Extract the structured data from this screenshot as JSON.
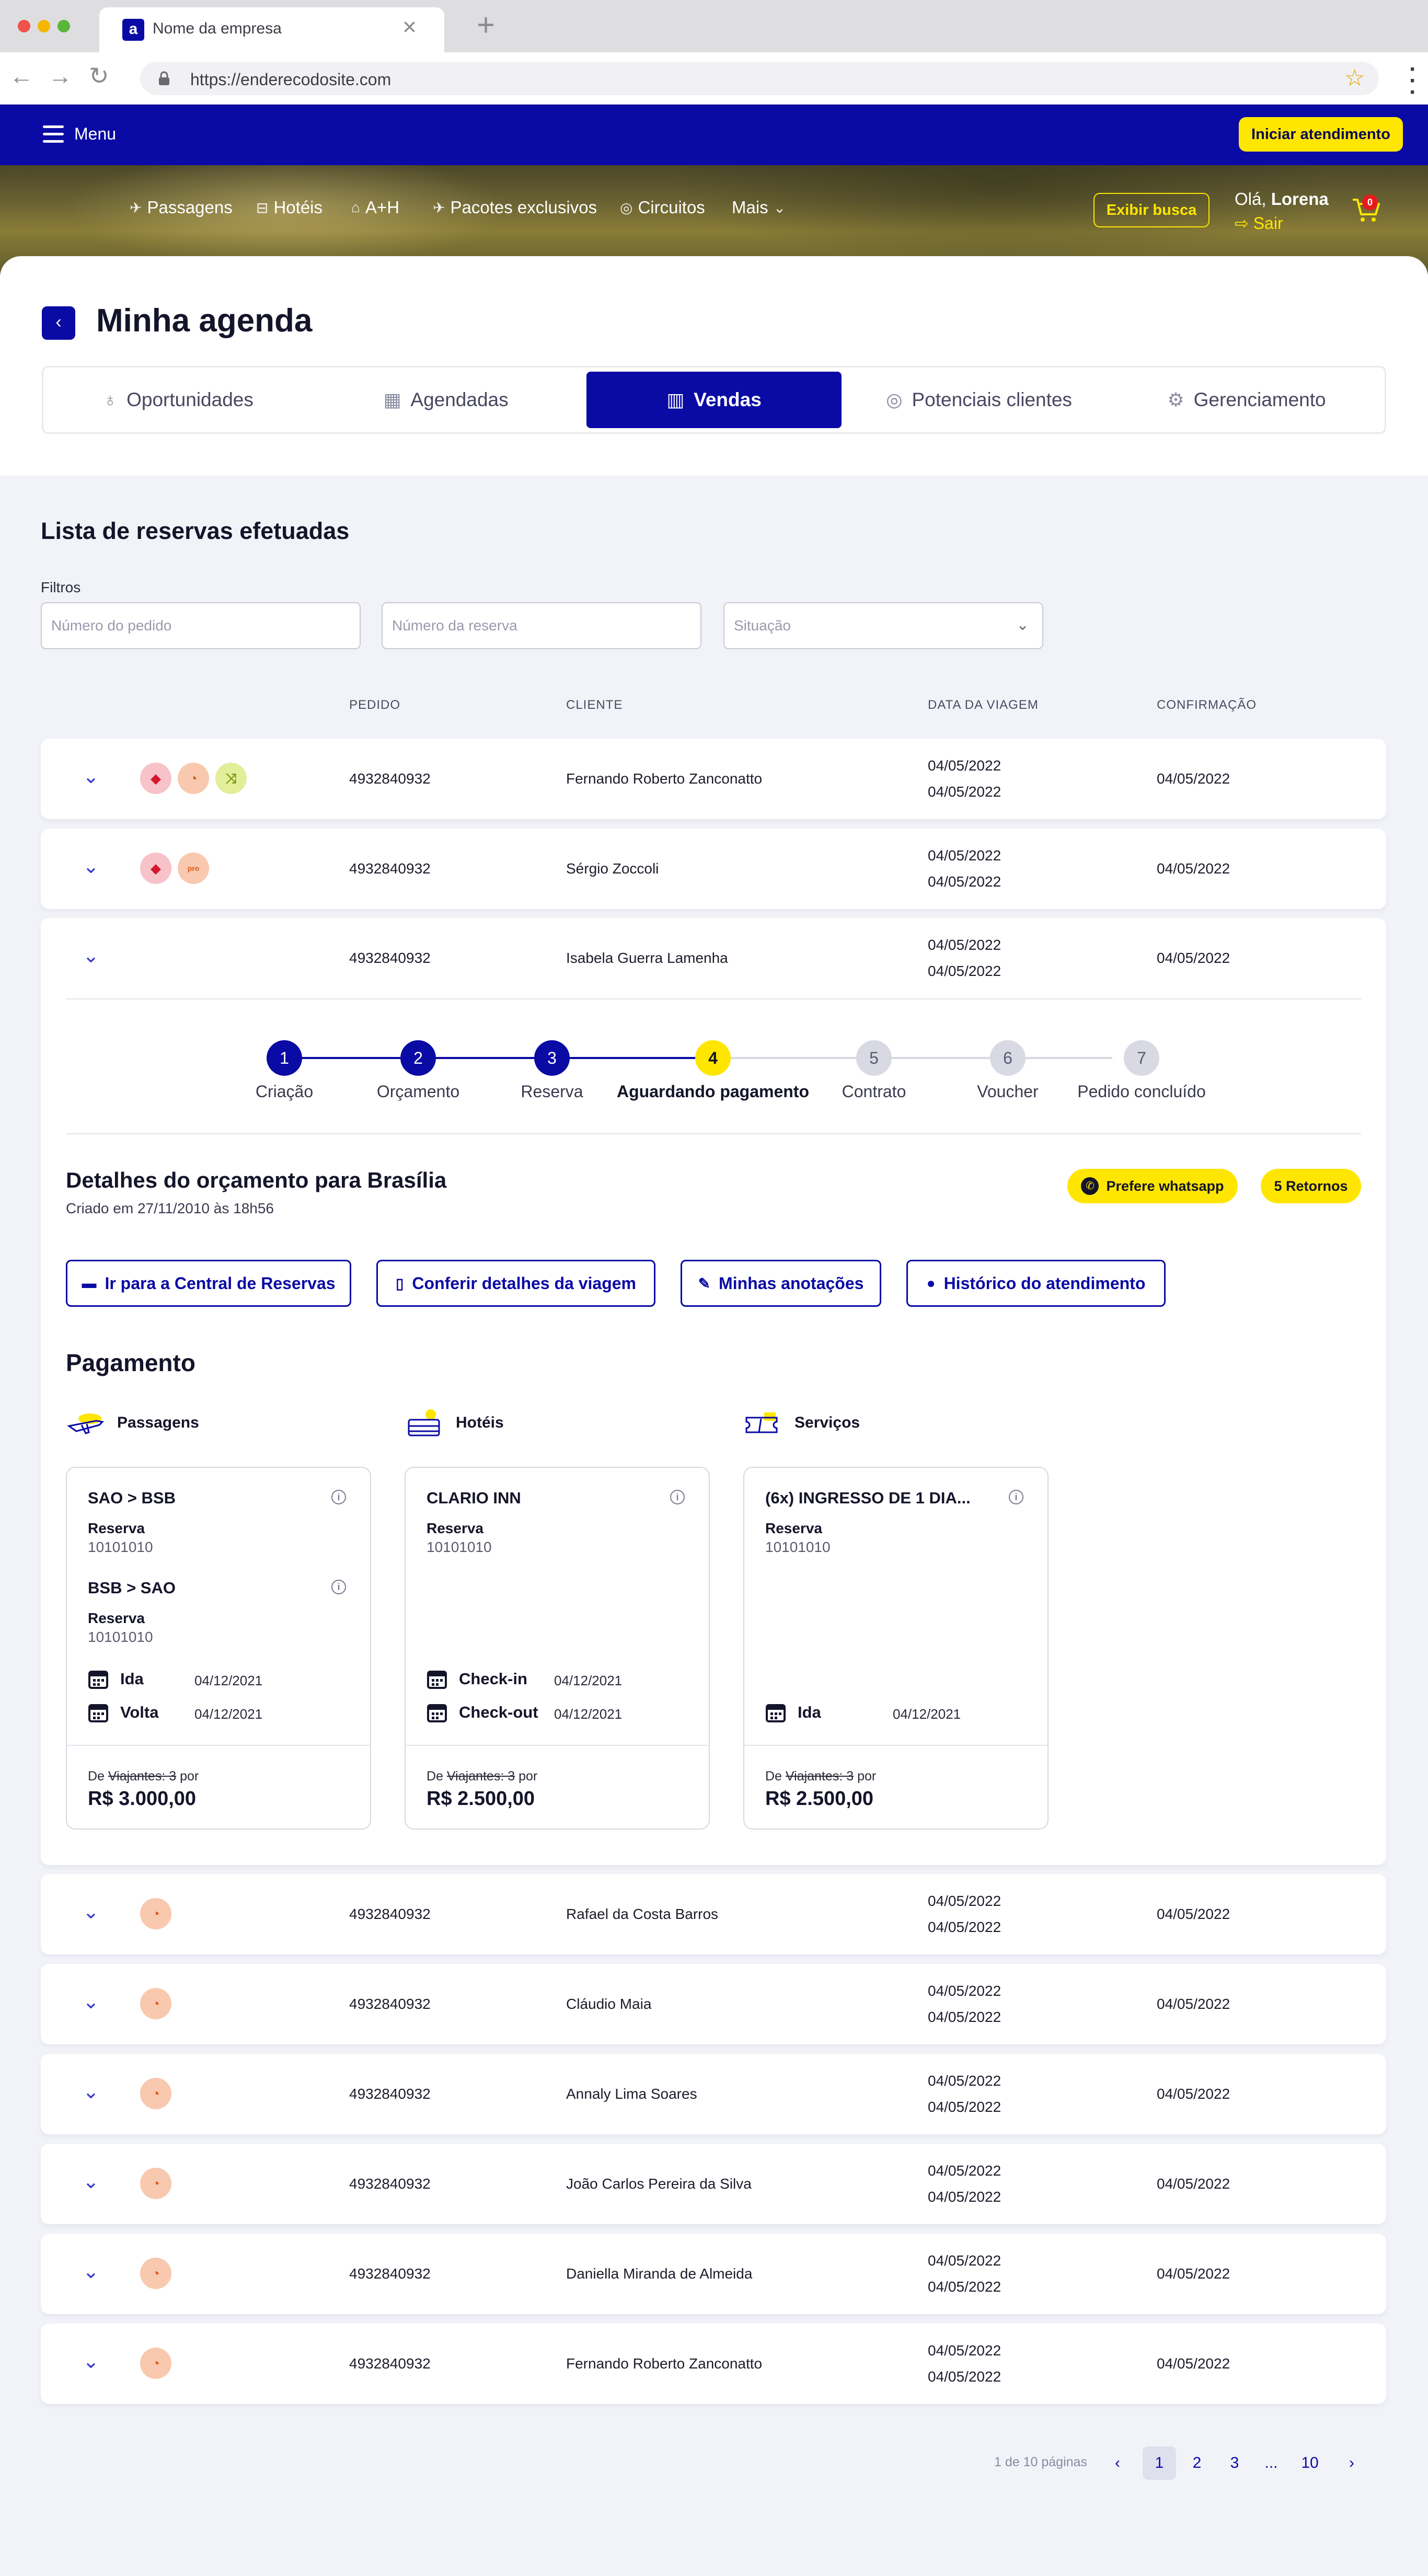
{
  "browser": {
    "tab_title": "Nome da empresa",
    "favicon_letter": "a",
    "url": "https://enderecodosite.com"
  },
  "header": {
    "menu_label": "Menu",
    "start_button": "Iniciar atendimento",
    "nav": [
      "Passagens",
      "Hotéis",
      "A+H",
      "Pacotes exclusivos",
      "Circuitos",
      "Mais"
    ],
    "search_toggle": "Exibir busca",
    "greeting_prefix": "Olá,",
    "user_name": "Lorena",
    "logout": "Sair",
    "cart_count": "0"
  },
  "page": {
    "title": "Minha agenda",
    "tabs": [
      {
        "label": "Oportunidades",
        "icon": "lightbulb-icon"
      },
      {
        "label": "Agendadas",
        "icon": "calendar-icon"
      },
      {
        "label": "Vendas",
        "icon": "bar-chart-icon",
        "active": true
      },
      {
        "label": "Potenciais clientes",
        "icon": "target-icon"
      },
      {
        "label": "Gerenciamento",
        "icon": "gear-icon"
      }
    ]
  },
  "list": {
    "title": "Lista de reservas efetuadas",
    "filters_label": "Filtros",
    "filters": {
      "order_placeholder": "Número do pedido",
      "booking_placeholder": "Número da reserva",
      "status_placeholder": "Situação"
    },
    "columns": {
      "pedido": "PEDIDO",
      "cliente": "CLIENTE",
      "data": "DATA DA VIAGEM",
      "confirmacao": "CONFIRMAÇÃO"
    },
    "rows_top": [
      {
        "pedido": "4932840932",
        "cliente": "Fernando Roberto Zanconatto",
        "d1": "04/05/2022",
        "d2": "04/05/2022",
        "conf": "04/05/2022",
        "badges": [
          "alert",
          "clock",
          "shuffle"
        ]
      },
      {
        "pedido": "4932840932",
        "cliente": "Sérgio Zoccoli",
        "d1": "04/05/2022",
        "d2": "04/05/2022",
        "conf": "04/05/2022",
        "badges": [
          "alert",
          "pending"
        ]
      },
      {
        "pedido": "4932840932",
        "cliente": "Isabela Guerra Lamenha",
        "d1": "04/05/2022",
        "d2": "04/05/2022",
        "conf": "04/05/2022",
        "badges": []
      }
    ],
    "rows_bottom": [
      {
        "pedido": "4932840932",
        "cliente": "Rafael da Costa Barros",
        "d1": "04/05/2022",
        "d2": "04/05/2022",
        "conf": "04/05/2022"
      },
      {
        "pedido": "4932840932",
        "cliente": "Cláudio Maia",
        "d1": "04/05/2022",
        "d2": "04/05/2022",
        "conf": "04/05/2022"
      },
      {
        "pedido": "4932840932",
        "cliente": "Annaly Lima Soares",
        "d1": "04/05/2022",
        "d2": "04/05/2022",
        "conf": "04/05/2022"
      },
      {
        "pedido": "4932840932",
        "cliente": "João Carlos Pereira da Silva",
        "d1": "04/05/2022",
        "d2": "04/05/2022",
        "conf": "04/05/2022"
      },
      {
        "pedido": "4932840932",
        "cliente": "Daniella Miranda de Almeida",
        "d1": "04/05/2022",
        "d2": "04/05/2022",
        "conf": "04/05/2022"
      },
      {
        "pedido": "4932840932",
        "cliente": "Fernando Roberto Zanconatto",
        "d1": "04/05/2022",
        "d2": "04/05/2022",
        "conf": "04/05/2022"
      }
    ],
    "badge_pending_text": "pro"
  },
  "expanded": {
    "steps": [
      {
        "n": "1",
        "label": "Criação",
        "state": "done"
      },
      {
        "n": "2",
        "label": "Orçamento",
        "state": "done"
      },
      {
        "n": "3",
        "label": "Reserva",
        "state": "done"
      },
      {
        "n": "4",
        "label": "Aguardando pagamento",
        "state": "current"
      },
      {
        "n": "5",
        "label": "Contrato",
        "state": "todo"
      },
      {
        "n": "6",
        "label": "Voucher",
        "state": "todo"
      },
      {
        "n": "7",
        "label": "Pedido concluído",
        "state": "todo"
      }
    ],
    "details_title": "Detalhes do orçamento para Brasília",
    "details_sub": "Criado em 27/11/2010 às 18h56",
    "pill_whatsapp": "Prefere whatsapp",
    "pill_returns": "5 Retornos",
    "actions": [
      {
        "label": "Ir para a Central de Reservas",
        "icon": "card-icon"
      },
      {
        "label": "Conferir detalhes da viagem",
        "icon": "map-icon"
      },
      {
        "label": "Minhas anotações",
        "icon": "pencil-icon"
      },
      {
        "label": "Histórico do atendimento",
        "icon": "chat-icon"
      }
    ],
    "payment_title": "Pagamento",
    "categories": [
      "Passagens",
      "Hotéis",
      "Serviços"
    ],
    "cards": {
      "flights": {
        "seg1": "SAO > BSB",
        "seg2": "BSB > SAO",
        "reserva_label": "Reserva",
        "reserva_code": "10101010",
        "ida_label": "Ida",
        "volta_label": "Volta",
        "ida_date": "04/12/2021",
        "volta_date": "04/12/2021",
        "price_prefix": "De",
        "price_strike": "Viajantes: 3",
        "price_suffix": "por",
        "price": "R$ 3.000,00"
      },
      "hotel": {
        "name": "CLARIO INN",
        "reserva_label": "Reserva",
        "reserva_code": "10101010",
        "checkin_label": "Check-in",
        "checkout_label": "Check-out",
        "checkin_date": "04/12/2021",
        "checkout_date": "04/12/2021",
        "price_prefix": "De",
        "price_strike": "Viajantes: 3",
        "price_suffix": "por",
        "price": "R$ 2.500,00"
      },
      "service": {
        "name": "(6x) INGRESSO DE 1 DIA...",
        "reserva_label": "Reserva",
        "reserva_code": "10101010",
        "ida_label": "Ida",
        "ida_date": "04/12/2021",
        "price_prefix": "De",
        "price_strike": "Viajantes: 3",
        "price_suffix": "por",
        "price": "R$ 2.500,00"
      }
    }
  },
  "pagination": {
    "info": "1 de 10 páginas",
    "pages": [
      "1",
      "2",
      "3",
      "...",
      "10"
    ],
    "prev": "‹",
    "next": "›"
  },
  "colors": {
    "primary": "#0a0aa5",
    "accent": "#ffe600"
  }
}
